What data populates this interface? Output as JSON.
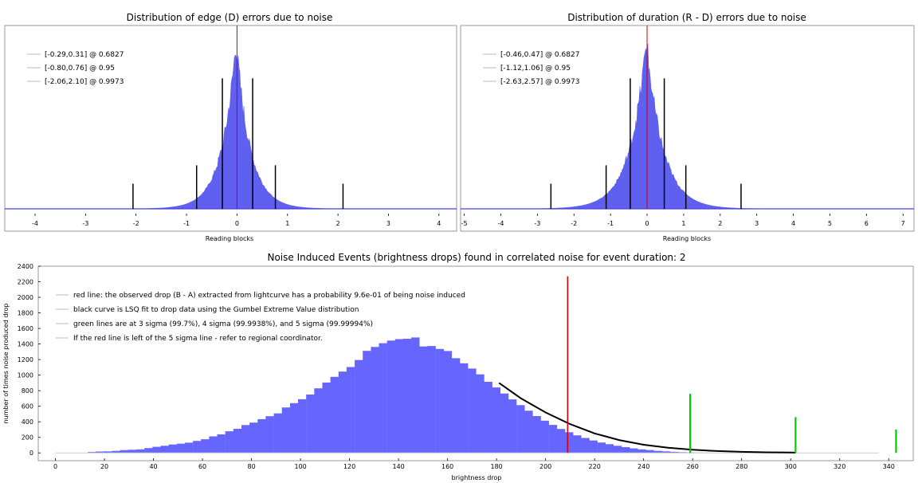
{
  "chart_data": [
    {
      "type": "bar",
      "title": "Distribution of edge (D) errors due to noise",
      "xlabel": "Reading blocks",
      "ylabel": "",
      "xlim": [
        -4.6,
        4.35
      ],
      "x_ticks": [
        -4,
        -3,
        -2,
        -1,
        0,
        1,
        2,
        3,
        4
      ],
      "grid": false,
      "legend_position": "top-left",
      "distribution": {
        "center": -0.02,
        "scale": 0.28,
        "peak": 1.0
      },
      "center_line_x": 0,
      "legend": [
        {
          "label": "[-0.29,0.31] @ 0.6827"
        },
        {
          "label": "[-0.80,0.76] @ 0.95"
        },
        {
          "label": "[-2.06,2.10] @ 0.9973"
        }
      ],
      "interval_lines": [
        {
          "x": -0.29,
          "height": 0.78
        },
        {
          "x": 0.31,
          "height": 0.78
        },
        {
          "x": -0.8,
          "height": 0.26
        },
        {
          "x": 0.76,
          "height": 0.26
        },
        {
          "x": -2.06,
          "height": 0.15
        },
        {
          "x": 2.1,
          "height": 0.15
        }
      ],
      "colors": {
        "bars": "#4444ee",
        "center_line": "#cc0000",
        "interval_lines": "#000000"
      }
    },
    {
      "type": "bar",
      "title": "Distribution of duration (R - D) errors due to noise",
      "xlabel": "Reading blocks",
      "ylabel": "",
      "xlim": [
        -5.1,
        7.3
      ],
      "x_ticks": [
        -5,
        -4,
        -3,
        -2,
        -1,
        0,
        1,
        2,
        3,
        4,
        5,
        6,
        7
      ],
      "grid": false,
      "legend_position": "top-left",
      "distribution": {
        "center": -0.02,
        "scale": 0.45,
        "peak": 1.0
      },
      "center_line_x": 0,
      "legend": [
        {
          "label": "[-0.46,0.47] @ 0.6827"
        },
        {
          "label": "[-1.12,1.06] @ 0.95"
        },
        {
          "label": "[-2.63,2.57] @ 0.9973"
        }
      ],
      "interval_lines": [
        {
          "x": -0.46,
          "height": 0.78
        },
        {
          "x": 0.47,
          "height": 0.78
        },
        {
          "x": -1.12,
          "height": 0.26
        },
        {
          "x": 1.06,
          "height": 0.26
        },
        {
          "x": -2.63,
          "height": 0.15
        },
        {
          "x": 2.57,
          "height": 0.15
        }
      ],
      "colors": {
        "bars": "#4444ee",
        "center_line": "#cc0000",
        "interval_lines": "#000000"
      }
    },
    {
      "type": "bar",
      "title": "Noise Induced Events (brightness drops) found in correlated noise for event duration: 2",
      "xlabel": "brightness drop",
      "ylabel": "number of times noise produced drop",
      "xlim": [
        -7,
        350
      ],
      "ylim": [
        -100,
        2400
      ],
      "x_ticks": [
        0,
        20,
        40,
        60,
        80,
        100,
        120,
        140,
        160,
        180,
        200,
        220,
        240,
        260,
        280,
        300,
        320,
        340
      ],
      "y_ticks": [
        0,
        200,
        400,
        600,
        800,
        1000,
        1200,
        1400,
        1600,
        1800,
        2000,
        2200,
        2400
      ],
      "grid": false,
      "legend_position": "top-left",
      "bin_width": 3.3,
      "histogram": [
        [
          0,
          0
        ],
        [
          3.3,
          0
        ],
        [
          6.6,
          0
        ],
        [
          9.9,
          2
        ],
        [
          13.2,
          12
        ],
        [
          16.5,
          18
        ],
        [
          19.8,
          20
        ],
        [
          23.1,
          26
        ],
        [
          26.4,
          36
        ],
        [
          29.7,
          40
        ],
        [
          33,
          46
        ],
        [
          36.3,
          62
        ],
        [
          39.6,
          78
        ],
        [
          42.9,
          92
        ],
        [
          46.2,
          108
        ],
        [
          49.5,
          118
        ],
        [
          52.8,
          132
        ],
        [
          56.1,
          154
        ],
        [
          59.4,
          176
        ],
        [
          62.7,
          212
        ],
        [
          66,
          238
        ],
        [
          69.3,
          278
        ],
        [
          72.6,
          310
        ],
        [
          75.9,
          358
        ],
        [
          79.2,
          390
        ],
        [
          82.5,
          434
        ],
        [
          85.8,
          472
        ],
        [
          89.1,
          508
        ],
        [
          92.4,
          584
        ],
        [
          95.7,
          640
        ],
        [
          99,
          690
        ],
        [
          102.3,
          750
        ],
        [
          105.6,
          830
        ],
        [
          108.9,
          904
        ],
        [
          112.2,
          978
        ],
        [
          115.5,
          1046
        ],
        [
          118.8,
          1104
        ],
        [
          122.1,
          1194
        ],
        [
          125.4,
          1312
        ],
        [
          128.7,
          1362
        ],
        [
          132,
          1410
        ],
        [
          135.3,
          1444
        ],
        [
          138.6,
          1462
        ],
        [
          141.9,
          1468
        ],
        [
          145.2,
          1484
        ],
        [
          148.5,
          1368
        ],
        [
          151.8,
          1374
        ],
        [
          155.1,
          1336
        ],
        [
          158.4,
          1310
        ],
        [
          161.7,
          1218
        ],
        [
          165,
          1152
        ],
        [
          168.3,
          1084
        ],
        [
          171.6,
          1010
        ],
        [
          174.9,
          914
        ],
        [
          178.2,
          842
        ],
        [
          181.5,
          764
        ],
        [
          184.8,
          688
        ],
        [
          188.1,
          614
        ],
        [
          191.4,
          542
        ],
        [
          194.7,
          474
        ],
        [
          198,
          414
        ],
        [
          201.3,
          360
        ],
        [
          204.6,
          308
        ],
        [
          207.9,
          266
        ],
        [
          211.2,
          226
        ],
        [
          214.5,
          192
        ],
        [
          217.8,
          160
        ],
        [
          221.1,
          134
        ],
        [
          224.4,
          112
        ],
        [
          227.7,
          92
        ],
        [
          231,
          74
        ],
        [
          234.3,
          58
        ],
        [
          237.6,
          46
        ],
        [
          240.9,
          36
        ],
        [
          244.2,
          26
        ],
        [
          247.5,
          20
        ],
        [
          250.8,
          14
        ],
        [
          254.1,
          10
        ],
        [
          257.4,
          7
        ],
        [
          260.7,
          4
        ],
        [
          264,
          3
        ],
        [
          267.3,
          2
        ],
        [
          270.6,
          1
        ],
        [
          273.9,
          1
        ],
        [
          277.2,
          0
        ],
        [
          280.5,
          0
        ],
        [
          283.8,
          0
        ],
        [
          287.1,
          0
        ],
        [
          290.4,
          0
        ],
        [
          293.7,
          0
        ],
        [
          297,
          0
        ],
        [
          300.3,
          0
        ],
        [
          303.6,
          0
        ],
        [
          306.9,
          0
        ],
        [
          310.2,
          0
        ],
        [
          313.5,
          0
        ],
        [
          316.8,
          0
        ],
        [
          320.1,
          0
        ],
        [
          323.4,
          0
        ],
        [
          326.7,
          0
        ],
        [
          330,
          0
        ],
        [
          333.3,
          0
        ]
      ],
      "gumbel_fit": [
        [
          181,
          900
        ],
        [
          190,
          700
        ],
        [
          200,
          520
        ],
        [
          210,
          370
        ],
        [
          220,
          250
        ],
        [
          230,
          165
        ],
        [
          240,
          105
        ],
        [
          250,
          66
        ],
        [
          260,
          40
        ],
        [
          270,
          24
        ],
        [
          280,
          14
        ],
        [
          290,
          8
        ],
        [
          300,
          4
        ],
        [
          302,
          3
        ]
      ],
      "observed_drop_line": {
        "x": 209,
        "top": 2270
      },
      "sigma_lines": [
        {
          "x": 259,
          "top": 760
        },
        {
          "x": 302,
          "top": 460
        },
        {
          "x": 343,
          "top": 300
        }
      ],
      "legend": [
        {
          "label": "red line: the observed drop (B - A) extracted from lightcurve has a probability 9.6e-01 of being noise induced"
        },
        {
          "label": "black curve is LSQ fit to drop data using the Gumbel Extreme Value distribution"
        },
        {
          "label": "green lines are at 3 sigma (99.7%), 4 sigma (99.9938%), and 5 sigma (99.99994%)"
        },
        {
          "label": "If the red line is left of the 5 sigma line - refer to regional coordinator."
        }
      ],
      "colors": {
        "bars": "#6666ff",
        "fit": "#000000",
        "observed": "#dd0000",
        "sigma": "#00cc00"
      }
    }
  ]
}
